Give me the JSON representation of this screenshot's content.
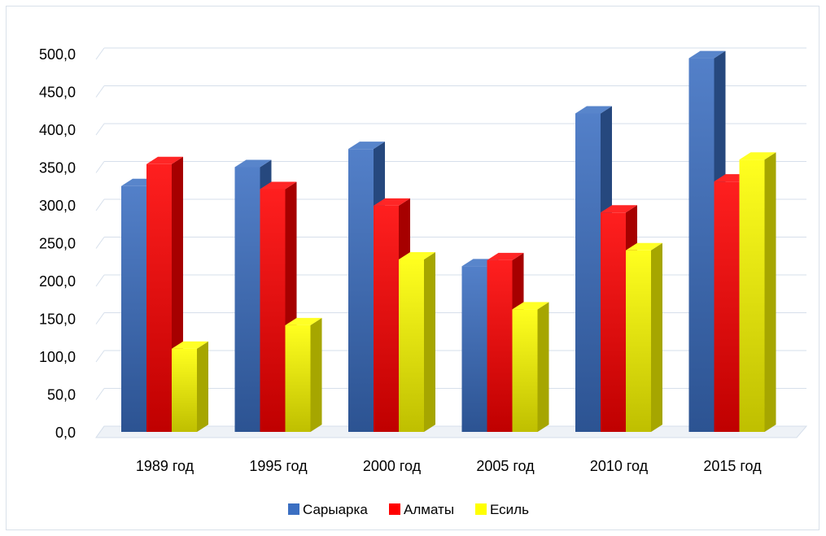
{
  "chart_data": {
    "type": "bar",
    "categories": [
      "1989 год",
      "1995 год",
      "2000 год",
      "2005 год",
      "2010 год",
      "2015 год"
    ],
    "series": [
      {
        "name": "Сарыарка",
        "color": "#3b6fc2",
        "values": [
          325,
          350,
          374,
          219,
          421,
          494
        ]
      },
      {
        "name": "Алматы",
        "color": "#ff0000",
        "values": [
          354,
          321,
          299,
          227,
          290,
          331
        ]
      },
      {
        "name": "Есиль",
        "color": "#ffff00",
        "values": [
          110,
          141,
          228,
          162,
          240,
          360
        ]
      }
    ],
    "y_ticks": [
      "0,0",
      "50,0",
      "100,0",
      "150,0",
      "200,0",
      "250,0",
      "300,0",
      "350,0",
      "400,0",
      "450,0",
      "500,0"
    ],
    "ylim": [
      0,
      500
    ],
    "grid": true,
    "legend_position": "bottom",
    "style": "3d-column"
  }
}
